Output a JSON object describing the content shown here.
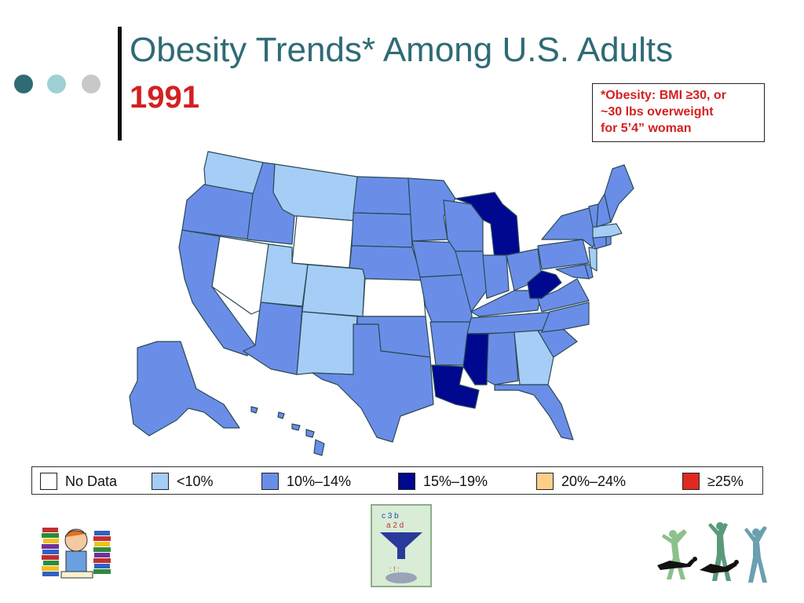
{
  "slide": {
    "title": "Obesity Trends* Among U.S. Adults",
    "year": "1991",
    "footnote_lines": [
      "*Obesity: BMI ≥30, or",
      "~30 lbs overweight",
      "for 5’4” woman"
    ]
  },
  "colors": {
    "title": "#2f6b75",
    "accent_red": "#d42020",
    "no_data": "#ffffff",
    "lt10": "#a6cdf5",
    "10_14": "#6a8ee8",
    "15_19": "#00088f",
    "20_24": "#ffce8a",
    "ge25": "#e02a20",
    "dots": [
      "#2f6b75",
      "#9fd0d4",
      "#c8c8c8"
    ]
  },
  "legend": [
    {
      "label": "No Data",
      "color": "#ffffff"
    },
    {
      "label": "<10%",
      "color": "#a6cdf5"
    },
    {
      "label": "10%–14%",
      "color": "#6a8ee8"
    },
    {
      "label": "15%–19%",
      "color": "#00088f"
    },
    {
      "label": "20%–24%",
      "color": "#ffce8a"
    },
    {
      "label": "≥25%",
      "color": "#e02a20"
    }
  ],
  "map": {
    "states": {
      "no_data": [
        "NV",
        "WY",
        "KS"
      ],
      "lt10": [
        "WA",
        "MT",
        "UT",
        "CO",
        "NM",
        "GA",
        "MA",
        "NJ"
      ],
      "10_14": [
        "OR",
        "CA",
        "ID",
        "AZ",
        "ND",
        "SD",
        "NE",
        "OK",
        "TX",
        "MN",
        "IA",
        "MO",
        "AR",
        "WI",
        "IL",
        "IN",
        "OH",
        "KY",
        "TN",
        "AL",
        "FL",
        "SC",
        "NC",
        "VA",
        "PA",
        "NY",
        "VT",
        "NH",
        "ME",
        "CT",
        "RI",
        "MD",
        "DE",
        "AK",
        "HI"
      ],
      "15_19": [
        "MI",
        "WV",
        "MS",
        "LA"
      ]
    }
  }
}
